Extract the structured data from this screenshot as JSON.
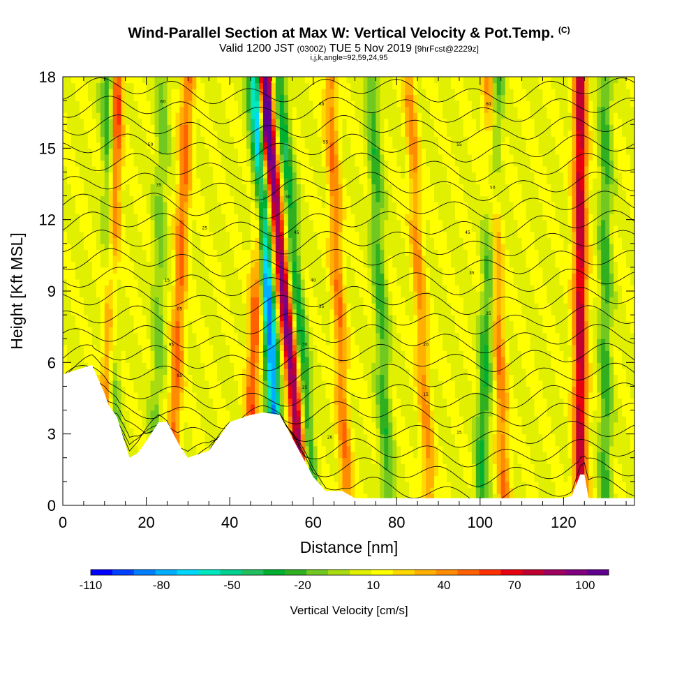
{
  "header": {
    "title": "Wind-Parallel Section at Max W: Vertical Velocity & Pot.Temp.",
    "copyright_mark": "(C)",
    "valid_main": "Valid 1200 JST",
    "valid_utc": "(0300Z)",
    "valid_date": "TUE 5 Nov 2019",
    "forecast": "[9hrFcst@2229z]",
    "indices": "i,j,k,angle=92,59,24,95"
  },
  "chart_data": {
    "type": "heatmap",
    "title": "Wind-Parallel Section at Max W: Vertical Velocity & Pot.Temp.",
    "xlabel": "Distance [nm]",
    "ylabel": "Height [Kft MSL]",
    "xlim": [
      0,
      137
    ],
    "ylim": [
      0,
      18
    ],
    "x_ticks": [
      0,
      20,
      40,
      60,
      80,
      100,
      120
    ],
    "y_ticks": [
      0,
      3,
      6,
      9,
      12,
      15,
      18
    ],
    "colorbar": {
      "title": "Vertical Velocity [cm/s]",
      "range": [
        -110,
        110
      ],
      "tick_labels": [
        "-110",
        "-80",
        "-50",
        "-20",
        "10",
        "40",
        "70",
        "100"
      ],
      "tick_values": [
        -110,
        -80,
        -50,
        -20,
        10,
        40,
        70,
        100
      ],
      "colors": [
        "#0000ff",
        "#0040ff",
        "#0080ff",
        "#00b0ff",
        "#00d8ff",
        "#00e8c0",
        "#00d090",
        "#20c060",
        "#00b030",
        "#30b020",
        "#70c820",
        "#a8dc10",
        "#e0f000",
        "#ffff00",
        "#ffd800",
        "#ffb000",
        "#ff8c00",
        "#ff6000",
        "#ff3000",
        "#e80010",
        "#c00030",
        "#a00060",
        "#800080",
        "#600090"
      ]
    },
    "terrain_profile": {
      "x": [
        0,
        7,
        10,
        11,
        13,
        16,
        18,
        20,
        23,
        25,
        28,
        30,
        35,
        38,
        40,
        45,
        48,
        52,
        56,
        60,
        63,
        67,
        70,
        90,
        110,
        118,
        120,
        122,
        124,
        125,
        126,
        137
      ],
      "height_kft": [
        5.5,
        5.9,
        4.7,
        4.2,
        3.7,
        2.0,
        2.2,
        2.7,
        3.5,
        3.5,
        2.5,
        2.0,
        2.3,
        3.0,
        3.5,
        3.8,
        3.9,
        3.8,
        2.5,
        1.2,
        0.6,
        0.6,
        0.3,
        0.3,
        0.3,
        0.3,
        0.3,
        0.4,
        1.3,
        1.3,
        0.3,
        0.3
      ]
    },
    "updraft_bands": [
      {
        "x_bottom": 10,
        "x_top": 13,
        "w": 60
      },
      {
        "x_bottom": 26,
        "x_top": 30,
        "w": 40
      },
      {
        "x_bottom": 44,
        "x_top": 49,
        "w": 45
      },
      {
        "x_bottom": 58,
        "x_top": 48,
        "w": 90
      },
      {
        "x_bottom": 68,
        "x_top": 64,
        "w": 35
      },
      {
        "x_bottom": 88,
        "x_top": 83,
        "w": 30
      },
      {
        "x_bottom": 106,
        "x_top": 102,
        "w": 35
      },
      {
        "x_bottom": 124,
        "x_top": 124,
        "w": 75
      }
    ],
    "downdraft_bands": [
      {
        "x_bottom": 12,
        "x_top": 11,
        "w": -45
      },
      {
        "x_bottom": 22,
        "x_top": 24,
        "w": -20
      },
      {
        "x_bottom": 52,
        "x_top": 46,
        "w": -95
      },
      {
        "x_bottom": 60,
        "x_top": 52,
        "w": -40
      },
      {
        "x_bottom": 78,
        "x_top": 74,
        "w": -30
      },
      {
        "x_bottom": 100,
        "x_top": 104,
        "w": -35
      },
      {
        "x_bottom": 130,
        "x_top": 130,
        "w": -30
      }
    ],
    "contour_labels": [
      {
        "x": 24,
        "height_kft": 16.9,
        "text": "60"
      },
      {
        "x": 21,
        "height_kft": 15.1,
        "text": "50"
      },
      {
        "x": 23,
        "height_kft": 13.4,
        "text": "35"
      },
      {
        "x": 34,
        "height_kft": 11.6,
        "text": "25"
      },
      {
        "x": 25,
        "height_kft": 9.4,
        "text": "15"
      },
      {
        "x": 28,
        "height_kft": 8.2,
        "text": "05"
      },
      {
        "x": 26,
        "height_kft": 6.7,
        "text": "95"
      },
      {
        "x": 28,
        "height_kft": 5.4,
        "text": "85"
      },
      {
        "x": 58,
        "height_kft": 4.9,
        "text": "25"
      },
      {
        "x": 58,
        "height_kft": 6.7,
        "text": "30"
      },
      {
        "x": 62,
        "height_kft": 8.3,
        "text": "35"
      },
      {
        "x": 60,
        "height_kft": 9.4,
        "text": "40"
      },
      {
        "x": 56,
        "height_kft": 11.4,
        "text": "45"
      },
      {
        "x": 54,
        "height_kft": 12.9,
        "text": "50"
      },
      {
        "x": 63,
        "height_kft": 15.2,
        "text": "55"
      },
      {
        "x": 62,
        "height_kft": 16.8,
        "text": "60"
      },
      {
        "x": 64,
        "height_kft": 2.8,
        "text": "20"
      },
      {
        "x": 87,
        "height_kft": 6.7,
        "text": "20"
      },
      {
        "x": 87,
        "height_kft": 4.6,
        "text": "15"
      },
      {
        "x": 95,
        "height_kft": 3.0,
        "text": "15"
      },
      {
        "x": 102,
        "height_kft": 8.0,
        "text": "25"
      },
      {
        "x": 98,
        "height_kft": 9.7,
        "text": "35"
      },
      {
        "x": 97,
        "height_kft": 11.4,
        "text": "45"
      },
      {
        "x": 103,
        "height_kft": 13.3,
        "text": "50"
      },
      {
        "x": 95,
        "height_kft": 15.1,
        "text": "55"
      },
      {
        "x": 102,
        "height_kft": 16.8,
        "text": "60"
      }
    ]
  }
}
